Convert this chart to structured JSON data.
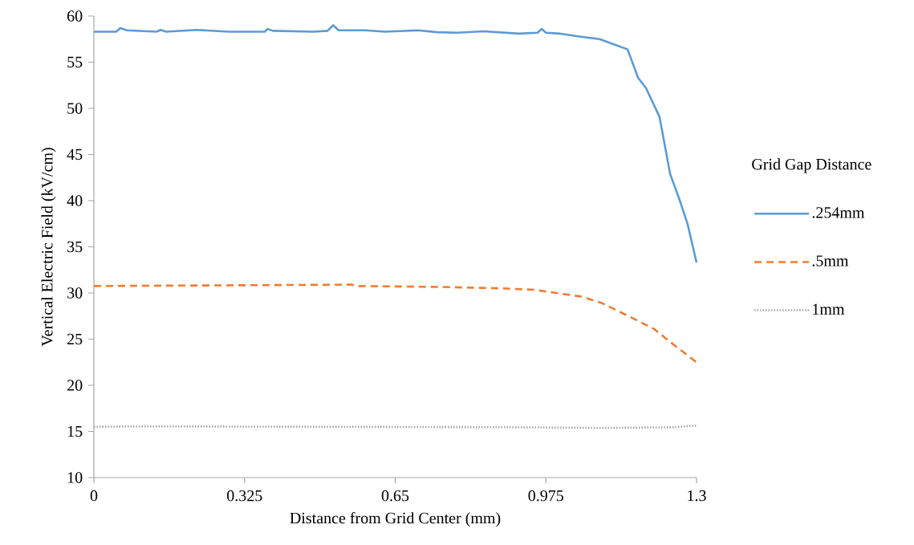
{
  "chart_data": {
    "type": "line",
    "xlabel": "Distance from Grid Center (mm)",
    "ylabel": "Vertical Electric Field (kV/cm)",
    "legend_title": "Grid Gap Distance",
    "legend": "right",
    "xlim": [
      0,
      1.3
    ],
    "xticks": [
      0,
      0.325,
      0.65,
      0.975,
      1.3
    ],
    "ylim": [
      10,
      60
    ],
    "yticks": [
      10,
      15,
      20,
      25,
      30,
      35,
      40,
      45,
      50,
      55,
      60
    ],
    "series": [
      {
        "name": ".254mm",
        "color": "#5b9bd5",
        "line_style": "solid",
        "x": [
          0,
          0.048,
          0.057,
          0.071,
          0.135,
          0.144,
          0.156,
          0.222,
          0.291,
          0.369,
          0.374,
          0.386,
          0.473,
          0.504,
          0.516,
          0.528,
          0.585,
          0.628,
          0.698,
          0.741,
          0.784,
          0.841,
          0.917,
          0.957,
          0.966,
          0.975,
          1.004,
          1.044,
          1.091,
          1.118,
          1.151,
          1.174,
          1.191,
          1.22,
          1.243,
          1.264,
          1.281,
          1.3
        ],
        "values": [
          58.3,
          58.3,
          58.7,
          58.45,
          58.3,
          58.5,
          58.3,
          58.5,
          58.3,
          58.3,
          58.6,
          58.4,
          58.3,
          58.4,
          59.0,
          58.45,
          58.45,
          58.3,
          58.45,
          58.25,
          58.2,
          58.35,
          58.1,
          58.2,
          58.6,
          58.2,
          58.1,
          57.8,
          57.5,
          57.0,
          56.4,
          53.3,
          52.2,
          49.1,
          42.9,
          40.0,
          37.4,
          33.3
        ]
      },
      {
        "name": ".5mm",
        "color": "#ed7d31",
        "line_style": "dashed",
        "x": [
          0,
          0.555,
          0.568,
          0.75,
          0.879,
          0.949,
          1.052,
          1.096,
          1.165,
          1.208,
          1.252,
          1.3
        ],
        "values": [
          30.75,
          30.9,
          30.75,
          30.65,
          30.5,
          30.35,
          29.6,
          28.9,
          27.2,
          26.1,
          24.35,
          22.5
        ]
      },
      {
        "name": "1mm",
        "color": "#a5a5a5",
        "line_style": "dotted",
        "x": [
          0,
          0.1,
          0.5,
          0.9,
          1.1,
          1.25,
          1.3
        ],
        "values": [
          15.5,
          15.55,
          15.5,
          15.45,
          15.38,
          15.45,
          15.65
        ]
      }
    ]
  }
}
